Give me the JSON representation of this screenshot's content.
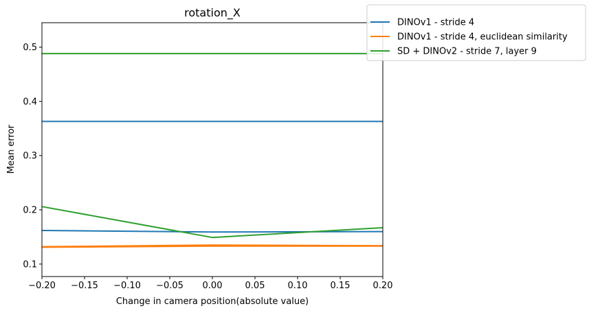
{
  "chart_data": {
    "type": "line",
    "title": "rotation_X",
    "xlabel": "Change in camera position(absolute value)",
    "ylabel": "Mean error",
    "xlim": [
      -0.2,
      0.2
    ],
    "ylim": [
      0.077,
      0.545
    ],
    "xticks": [
      -0.2,
      -0.15,
      -0.1,
      -0.05,
      0.0,
      0.05,
      0.1,
      0.15,
      0.2
    ],
    "xtick_labels": [
      "−0.20",
      "−0.15",
      "−0.10",
      "−0.05",
      "0.00",
      "0.05",
      "0.10",
      "0.15",
      "0.20"
    ],
    "yticks": [
      0.1,
      0.2,
      0.3,
      0.4,
      0.5
    ],
    "ytick_labels": [
      "0.1",
      "0.2",
      "0.3",
      "0.4",
      "0.5"
    ],
    "grid": false,
    "legend_position": "outside top-right",
    "series": [
      {
        "name": "DINOv1 - stride 4",
        "color": "#1f77b4",
        "legend": true,
        "x": [
          -0.2,
          0.0,
          0.2
        ],
        "y": [
          0.162,
          0.159,
          0.16
        ]
      },
      {
        "name": "DINOv1 - stride 4, euclidean similarity",
        "color": "#ff7f0e",
        "legend": true,
        "x": [
          -0.2,
          0.0,
          0.2
        ],
        "y": [
          0.131,
          0.133,
          0.133
        ]
      },
      {
        "name": "SD + DINOv2 - stride 7, layer 9",
        "color": "#2ca02c",
        "legend": true,
        "x": [
          -0.2,
          0.0,
          0.2
        ],
        "y": [
          0.206,
          0.149,
          0.167
        ]
      },
      {
        "name": "",
        "color": "#1f77b4",
        "legend": false,
        "x": [
          -0.2,
          0.0,
          0.2
        ],
        "y": [
          0.363,
          0.363,
          0.363
        ]
      },
      {
        "name": "",
        "color": "#ff7f0e",
        "legend": false,
        "x": [
          -0.2,
          0.0,
          0.2
        ],
        "y": [
          0.132,
          0.135,
          0.134
        ]
      },
      {
        "name": "",
        "color": "#2ca02c",
        "legend": false,
        "x": [
          -0.2,
          0.0,
          0.2
        ],
        "y": [
          0.488,
          0.488,
          0.488
        ]
      }
    ]
  }
}
